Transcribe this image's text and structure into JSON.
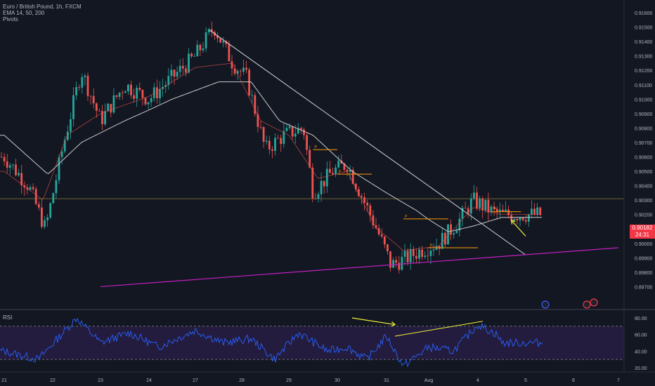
{
  "legend": {
    "symbol": "Euro / British Pound, 1h, FXCM",
    "ema": "EMA 14, 50, 200",
    "pivots": "Pivots"
  },
  "current_price": "0.90182",
  "countdown": "24:31",
  "rsi_label": "RSI",
  "pivot_marker": "P",
  "colors": {
    "background": "#131722",
    "up_candle": "#26a69a",
    "down_candle": "#ef5350",
    "ema_fast": "#ef5350",
    "ema_slow": "#c9c9c9",
    "pivot_lines": "#ff9800",
    "trendline": "#d1d4dc",
    "support_line": "#c020c0",
    "arrow": "#f2f23a",
    "rsi_line": "#2962ff",
    "rsi_band": "#2a1f4a",
    "price_tag": "#f23645"
  },
  "chart_data": [
    {
      "type": "candlestick",
      "title": "Euro / British Pound, 1h, FXCM",
      "x_ticks": [
        "21",
        "22",
        "23",
        "24",
        "27",
        "28",
        "29",
        "30",
        "31",
        "Aug",
        "4",
        "5",
        "6",
        "7"
      ],
      "y_ticks": [
        "0.91600",
        "0.91500",
        "0.91400",
        "0.91300",
        "0.91200",
        "0.91100",
        "0.91000",
        "0.90900",
        "0.90800",
        "0.90700",
        "0.90600",
        "0.90500",
        "0.90400",
        "0.90300",
        "0.90200",
        "0.90100",
        "0.90000",
        "0.89900",
        "0.89800",
        "0.89700"
      ],
      "ylim": [
        0.8967,
        0.9168
      ],
      "grid": false,
      "price_anchors": [
        {
          "day": 0.0,
          "price": 0.906
        },
        {
          "day": 0.5,
          "price": 0.904
        },
        {
          "day": 0.85,
          "price": 0.901
        },
        {
          "day": 1.2,
          "price": 0.9065
        },
        {
          "day": 1.6,
          "price": 0.912
        },
        {
          "day": 2.0,
          "price": 0.9085
        },
        {
          "day": 2.5,
          "price": 0.911
        },
        {
          "day": 3.0,
          "price": 0.91
        },
        {
          "day": 3.5,
          "price": 0.9115
        },
        {
          "day": 4.0,
          "price": 0.913
        },
        {
          "day": 4.4,
          "price": 0.915
        },
        {
          "day": 4.8,
          "price": 0.9125
        },
        {
          "day": 5.1,
          "price": 0.9115
        },
        {
          "day": 5.5,
          "price": 0.9065
        },
        {
          "day": 5.9,
          "price": 0.9075
        },
        {
          "day": 6.3,
          "price": 0.908
        },
        {
          "day": 6.5,
          "price": 0.9035
        },
        {
          "day": 6.9,
          "price": 0.905
        },
        {
          "day": 7.2,
          "price": 0.9055
        },
        {
          "day": 7.4,
          "price": 0.904
        },
        {
          "day": 7.8,
          "price": 0.901
        },
        {
          "day": 8.1,
          "price": 0.8985
        },
        {
          "day": 8.5,
          "price": 0.899
        },
        {
          "day": 8.8,
          "price": 0.8995
        },
        {
          "day": 9.2,
          "price": 0.9
        },
        {
          "day": 9.6,
          "price": 0.9015
        },
        {
          "day": 9.9,
          "price": 0.903
        },
        {
          "day": 10.3,
          "price": 0.9022
        },
        {
          "day": 10.5,
          "price": 0.902
        }
      ],
      "ema_fast_anchors": [
        {
          "day": 0.0,
          "price": 0.905
        },
        {
          "day": 0.8,
          "price": 0.903
        },
        {
          "day": 1.3,
          "price": 0.9075
        },
        {
          "day": 2.0,
          "price": 0.909
        },
        {
          "day": 3.0,
          "price": 0.9102
        },
        {
          "day": 4.0,
          "price": 0.9122
        },
        {
          "day": 4.8,
          "price": 0.9125
        },
        {
          "day": 5.4,
          "price": 0.9085
        },
        {
          "day": 6.0,
          "price": 0.9075
        },
        {
          "day": 6.6,
          "price": 0.9045
        },
        {
          "day": 7.2,
          "price": 0.905
        },
        {
          "day": 7.8,
          "price": 0.901
        },
        {
          "day": 8.4,
          "price": 0.8995
        },
        {
          "day": 9.2,
          "price": 0.8998
        },
        {
          "day": 9.9,
          "price": 0.9025
        },
        {
          "day": 10.5,
          "price": 0.902
        }
      ],
      "ema_slow_anchors": [
        {
          "day": 0.0,
          "price": 0.9075
        },
        {
          "day": 0.9,
          "price": 0.9048
        },
        {
          "day": 1.6,
          "price": 0.907
        },
        {
          "day": 2.5,
          "price": 0.9085
        },
        {
          "day": 3.5,
          "price": 0.91
        },
        {
          "day": 4.5,
          "price": 0.9112
        },
        {
          "day": 5.2,
          "price": 0.9112
        },
        {
          "day": 5.8,
          "price": 0.9085
        },
        {
          "day": 6.5,
          "price": 0.9075
        },
        {
          "day": 7.3,
          "price": 0.905
        },
        {
          "day": 8.0,
          "price": 0.9035
        },
        {
          "day": 8.7,
          "price": 0.9023
        },
        {
          "day": 9.4,
          "price": 0.9008
        },
        {
          "day": 9.9,
          "price": 0.9012
        },
        {
          "day": 10.5,
          "price": 0.9018
        }
      ],
      "horizontal_line": 0.9031,
      "trendline": [
        {
          "day": 4.3,
          "price": 0.9148
        },
        {
          "day": 11.0,
          "price": 0.8992
        }
      ],
      "support_line": [
        {
          "day": 2.0,
          "price": 0.897
        },
        {
          "day": 13.0,
          "price": 0.8997
        }
      ],
      "pivot_levels": [
        {
          "day_start": 6.5,
          "day_end": 7.0,
          "price": 0.9065
        },
        {
          "day_start": 7.0,
          "day_end": 7.7,
          "price": 0.9048
        },
        {
          "day_start": 8.4,
          "day_end": 9.4,
          "price": 0.9017
        },
        {
          "day_start": 9.0,
          "day_end": 10.0,
          "price": 0.8997
        },
        {
          "day_start": 10.3,
          "day_end": 10.9,
          "price": 0.9022
        }
      ],
      "arrow": {
        "from": {
          "day": 11.0,
          "price": 0.9005
        },
        "to": {
          "day": 10.7,
          "price": 0.9016
        }
      }
    },
    {
      "type": "line",
      "title": "RSI",
      "y_ticks": [
        "80.00",
        "60.00",
        "40.00",
        "20.00"
      ],
      "ylim": [
        15,
        92
      ],
      "band": [
        30,
        70
      ],
      "rsi_anchors": [
        {
          "day": 0.0,
          "value": 40
        },
        {
          "day": 0.7,
          "value": 30
        },
        {
          "day": 1.5,
          "value": 80
        },
        {
          "day": 2.0,
          "value": 50
        },
        {
          "day": 2.6,
          "value": 62
        },
        {
          "day": 3.2,
          "value": 45
        },
        {
          "day": 4.0,
          "value": 65
        },
        {
          "day": 4.6,
          "value": 50
        },
        {
          "day": 5.2,
          "value": 55
        },
        {
          "day": 5.7,
          "value": 30
        },
        {
          "day": 6.2,
          "value": 62
        },
        {
          "day": 6.8,
          "value": 40
        },
        {
          "day": 7.2,
          "value": 45
        },
        {
          "day": 7.6,
          "value": 30
        },
        {
          "day": 8.0,
          "value": 58
        },
        {
          "day": 8.4,
          "value": 22
        },
        {
          "day": 9.0,
          "value": 45
        },
        {
          "day": 9.5,
          "value": 40
        },
        {
          "day": 10.0,
          "value": 72
        },
        {
          "day": 10.4,
          "value": 60
        },
        {
          "day": 10.5,
          "value": 50
        }
      ],
      "divergence_line": [
        {
          "day": 8.2,
          "value": 58
        },
        {
          "day": 10.1,
          "value": 76
        }
      ],
      "arrow": {
        "from": {
          "day": 7.3,
          "value": 80
        },
        "to": {
          "day": 8.2,
          "value": 72
        }
      }
    }
  ]
}
